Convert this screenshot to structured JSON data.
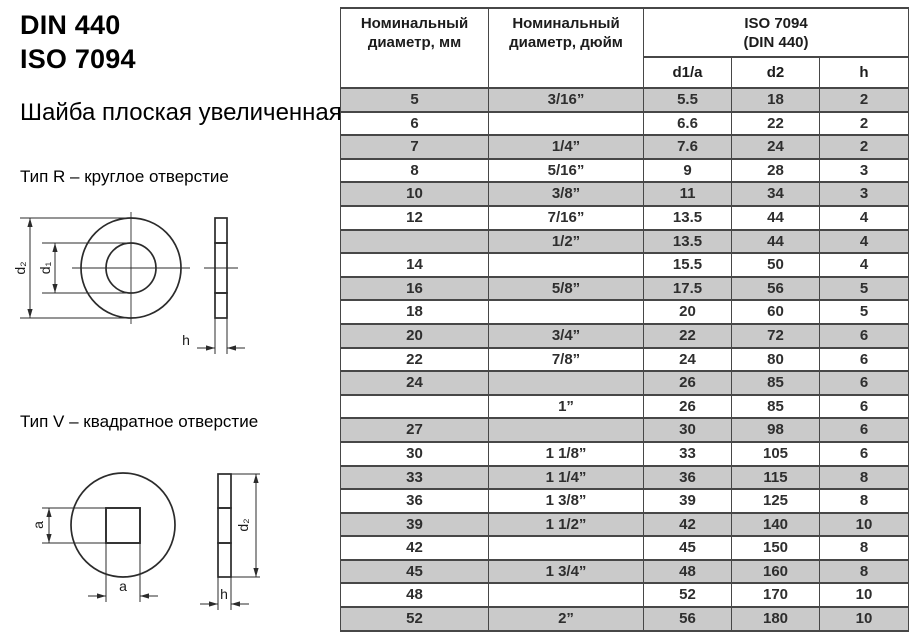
{
  "header": {
    "standard_din": "DIN 440",
    "standard_iso": "ISO 7094",
    "title": "Шайба плоская увеличенная"
  },
  "type_r": {
    "caption": "Тип R – круглое отверстие",
    "labels": {
      "d2": "d₂",
      "d1": "d₁",
      "h": "h"
    }
  },
  "type_v": {
    "caption": "Тип V – квадратное отверстие",
    "labels": {
      "a_left": "a",
      "a_bottom": "a",
      "d2": "d₂",
      "h": "h"
    }
  },
  "table": {
    "headers": {
      "mm": "Номинальный диаметр, мм",
      "inch": "Номинальный диаметр, дюйм",
      "group_line1": "ISO 7094",
      "group_line2": "(DIN 440)",
      "sub_d1a": "d1/a",
      "sub_d2": "d2",
      "sub_h": "h"
    },
    "rows": [
      [
        "5",
        "3/16”",
        "5.5",
        "18",
        "2"
      ],
      [
        "6",
        "",
        "6.6",
        "22",
        "2"
      ],
      [
        "7",
        "1/4”",
        "7.6",
        "24",
        "2"
      ],
      [
        "8",
        "5/16”",
        "9",
        "28",
        "3"
      ],
      [
        "10",
        "3/8”",
        "11",
        "34",
        "3"
      ],
      [
        "12",
        "7/16”",
        "13.5",
        "44",
        "4"
      ],
      [
        "",
        "1/2”",
        "13.5",
        "44",
        "4"
      ],
      [
        "14",
        "",
        "15.5",
        "50",
        "4"
      ],
      [
        "16",
        "5/8”",
        "17.5",
        "56",
        "5"
      ],
      [
        "18",
        "",
        "20",
        "60",
        "5"
      ],
      [
        "20",
        "3/4”",
        "22",
        "72",
        "6"
      ],
      [
        "22",
        "7/8”",
        "24",
        "80",
        "6"
      ],
      [
        "24",
        "",
        "26",
        "85",
        "6"
      ],
      [
        "",
        "1”",
        "26",
        "85",
        "6"
      ],
      [
        "27",
        "",
        "30",
        "98",
        "6"
      ],
      [
        "30",
        "1 1/8”",
        "33",
        "105",
        "6"
      ],
      [
        "33",
        "1 1/4”",
        "36",
        "115",
        "8"
      ],
      [
        "36",
        "1 3/8”",
        "39",
        "125",
        "8"
      ],
      [
        "39",
        "1 1/2”",
        "42",
        "140",
        "10"
      ],
      [
        "42",
        "",
        "45",
        "150",
        "8"
      ],
      [
        "45",
        "1 3/4”",
        "48",
        "160",
        "8"
      ],
      [
        "48",
        "",
        "52",
        "170",
        "10"
      ],
      [
        "52",
        "2”",
        "56",
        "180",
        "10"
      ]
    ],
    "colors": {
      "row_alt": "#cacaca",
      "border": "#474747"
    }
  }
}
